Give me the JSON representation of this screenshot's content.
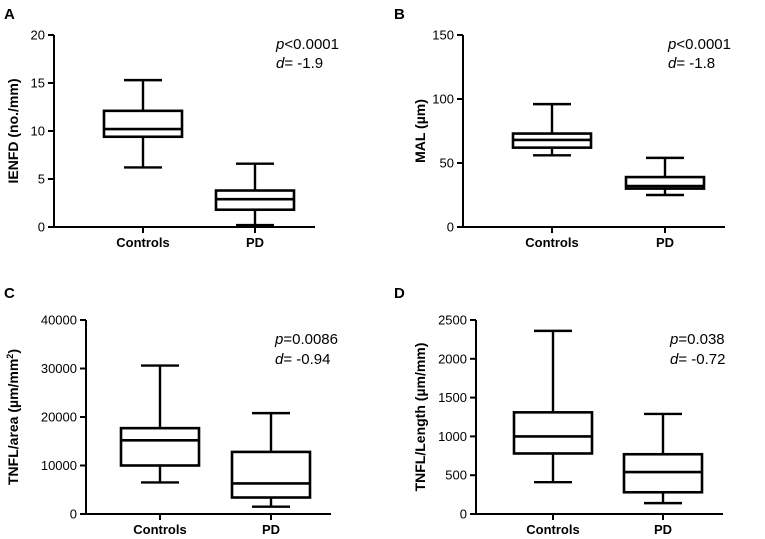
{
  "chart_data": [
    {
      "panel": "A",
      "type": "box",
      "ylabel": "IENFD (no./mm)",
      "ylim": [
        0,
        20
      ],
      "yticks": [
        0,
        5,
        10,
        15,
        20
      ],
      "categories": [
        "Controls",
        "PD"
      ],
      "boxes": [
        {
          "name": "Controls",
          "min": 6.2,
          "q1": 9.4,
          "median": 10.2,
          "q3": 12.1,
          "max": 15.3
        },
        {
          "name": "PD",
          "min": 0.2,
          "q1": 1.8,
          "median": 2.9,
          "q3": 3.8,
          "max": 6.6
        }
      ],
      "p_label": "p",
      "p_value": "<0.0001",
      "d_label": "d",
      "d_value": "= -1.9"
    },
    {
      "panel": "B",
      "type": "box",
      "ylabel": "MAL (µm)",
      "ylim": [
        0,
        150
      ],
      "yticks": [
        0,
        50,
        100,
        150
      ],
      "categories": [
        "Controls",
        "PD"
      ],
      "boxes": [
        {
          "name": "Controls",
          "min": 56,
          "q1": 62,
          "median": 68,
          "q3": 73,
          "max": 96
        },
        {
          "name": "PD",
          "min": 25,
          "q1": 30,
          "median": 32,
          "q3": 39,
          "max": 54
        }
      ],
      "p_label": "p",
      "p_value": "<0.0001",
      "d_label": "d",
      "d_value": "= -1.8"
    },
    {
      "panel": "C",
      "type": "box",
      "ylabel": "TNFL/area (µm/mm",
      "ylabel_sup": "2",
      "ylabel_end": ")",
      "ylim": [
        0,
        40000
      ],
      "yticks": [
        0,
        10000,
        20000,
        30000,
        40000
      ],
      "categories": [
        "Controls",
        "PD"
      ],
      "boxes": [
        {
          "name": "Controls",
          "min": 6500,
          "q1": 10000,
          "median": 15200,
          "q3": 17700,
          "max": 30600
        },
        {
          "name": "PD",
          "min": 1500,
          "q1": 3400,
          "median": 6300,
          "q3": 12800,
          "max": 20800
        }
      ],
      "p_label": "p",
      "p_value": "=0.0086",
      "d_label": "d",
      "d_value": "= -0.94"
    },
    {
      "panel": "D",
      "type": "box",
      "ylabel": "TNFL/Length (µm/mm)",
      "ylim": [
        0,
        2500
      ],
      "yticks": [
        0,
        500,
        1000,
        1500,
        2000,
        2500
      ],
      "categories": [
        "Controls",
        "PD"
      ],
      "boxes": [
        {
          "name": "Controls",
          "min": 410,
          "q1": 780,
          "median": 1000,
          "q3": 1310,
          "max": 2360
        },
        {
          "name": "PD",
          "min": 140,
          "q1": 280,
          "median": 540,
          "q3": 770,
          "max": 1290
        }
      ],
      "p_label": "p",
      "p_value": "=0.038",
      "d_label": "d",
      "d_value": "= -0.72"
    }
  ]
}
